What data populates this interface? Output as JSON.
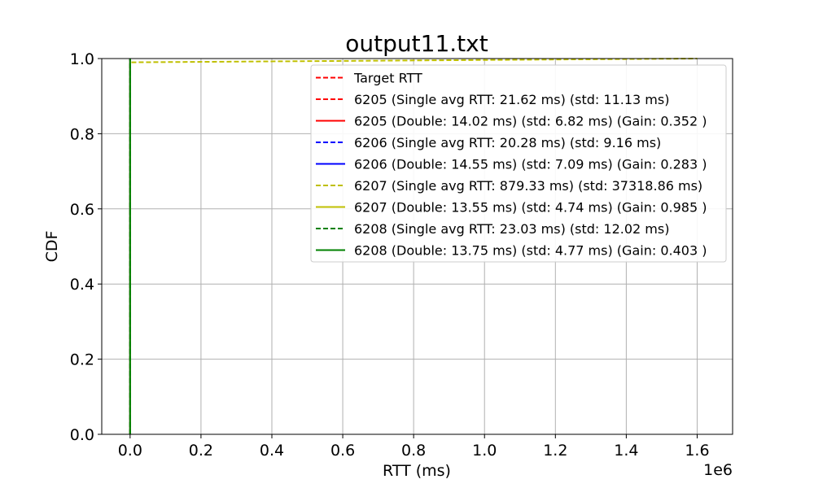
{
  "chart_data": {
    "type": "line",
    "title": "output11.txt",
    "xlabel": "RTT (ms)",
    "ylabel": "CDF",
    "x_offset_label": "1e6",
    "x_scale_multiplier": 1000000,
    "xlim": [
      -80000,
      1700000
    ],
    "ylim": [
      0,
      1.0
    ],
    "xticks": [
      0,
      200000,
      400000,
      600000,
      800000,
      1000000,
      1200000,
      1400000,
      1600000
    ],
    "xtick_labels": [
      "0.0",
      "0.2",
      "0.4",
      "0.6",
      "0.8",
      "1.0",
      "1.2",
      "1.4",
      "1.6"
    ],
    "yticks": [
      0.0,
      0.2,
      0.4,
      0.6,
      0.8,
      1.0
    ],
    "ytick_labels": [
      "0.0",
      "0.2",
      "0.4",
      "0.6",
      "0.8",
      "1.0"
    ],
    "grid": true,
    "legend_position": "top-right",
    "series": [
      {
        "name": "Target RTT",
        "color": "#ff0000",
        "style": "dashed",
        "points": [
          [
            0,
            0
          ],
          [
            0,
            1
          ]
        ]
      },
      {
        "name": "6205 (Single avg RTT: 21.62 ms) (std: 11.13 ms)",
        "color": "#ff0000",
        "style": "dashed",
        "points": [
          [
            0,
            0
          ],
          [
            0,
            1
          ]
        ]
      },
      {
        "name": "6205 (Double: 14.02 ms) (std: 6.82 ms) (Gain: 0.352 )",
        "color": "#ff0000",
        "style": "solid",
        "points": [
          [
            0,
            0
          ],
          [
            0,
            1
          ]
        ]
      },
      {
        "name": "6206 (Single avg RTT: 20.28 ms) (std: 9.16 ms)",
        "color": "#0000ff",
        "style": "dashed",
        "points": [
          [
            0,
            0
          ],
          [
            0,
            1
          ]
        ]
      },
      {
        "name": "6206 (Double: 14.55 ms) (std: 7.09 ms) (Gain: 0.283 )",
        "color": "#0000ff",
        "style": "solid",
        "points": [
          [
            0,
            0
          ],
          [
            0,
            1
          ]
        ]
      },
      {
        "name": "6207 (Single avg RTT: 879.33 ms) (std: 37318.86 ms)",
        "color": "#bfbf00",
        "style": "dashed",
        "points": [
          [
            0,
            0
          ],
          [
            0,
            0.99
          ],
          [
            1600000,
            1
          ]
        ]
      },
      {
        "name": "6207 (Double: 13.55 ms) (std: 4.74 ms) (Gain: 0.985 )",
        "color": "#bfbf00",
        "style": "solid",
        "points": [
          [
            0,
            0
          ],
          [
            0,
            1
          ]
        ]
      },
      {
        "name": "6208 (Single avg RTT: 23.03 ms) (std: 12.02 ms)",
        "color": "#008000",
        "style": "dashed",
        "points": [
          [
            0,
            0
          ],
          [
            0,
            1
          ]
        ]
      },
      {
        "name": "6208 (Double: 13.75 ms) (std: 4.77 ms) (Gain: 0.403 )",
        "color": "#008000",
        "style": "solid",
        "points": [
          [
            0,
            0
          ],
          [
            0,
            1
          ]
        ]
      }
    ]
  }
}
